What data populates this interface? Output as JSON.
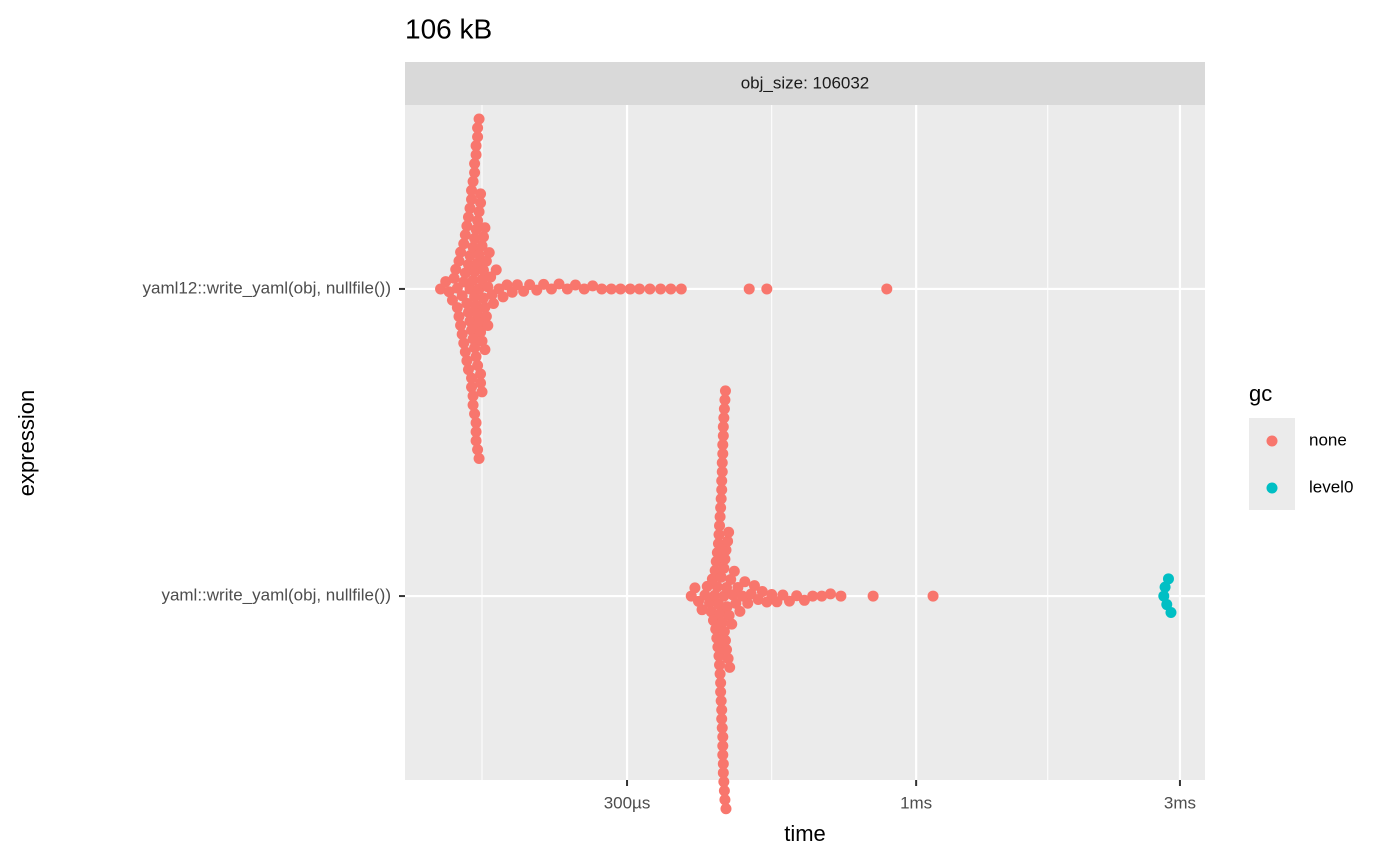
{
  "chart_data": {
    "type": "beeswarm",
    "title": "106 kB",
    "strip": "obj_size: 106032",
    "x_label": "time",
    "y_label": "expression",
    "categories": [
      "yaml12::write_yaml(obj, nullfile())",
      "yaml::write_yaml(obj, nullfile())"
    ],
    "log_x": true,
    "xlim": [
      119,
      3330
    ],
    "xticks": [
      {
        "value": 300,
        "label": "300µs"
      },
      {
        "value": 1000,
        "label": "1ms"
      },
      {
        "value": 3000,
        "label": "3ms"
      }
    ],
    "xminorticks": [
      164,
      548,
      1730
    ],
    "grid": true,
    "legend_title": "gc",
    "legend_position": "right",
    "series": [
      {
        "name": "none",
        "color": "#f8766d",
        "values": [
          [
            138,
            141,
            143,
            145,
            146,
            147,
            148,
            148,
            149,
            149,
            150,
            150,
            151,
            151,
            152,
            152,
            152,
            153,
            153,
            153,
            154,
            154,
            154,
            155,
            155,
            155,
            155,
            156,
            156,
            156,
            156,
            157,
            157,
            157,
            157,
            157,
            158,
            158,
            158,
            158,
            158,
            158,
            159,
            159,
            159,
            159,
            159,
            159,
            159,
            160,
            160,
            160,
            160,
            160,
            160,
            160,
            160,
            161,
            161,
            161,
            161,
            161,
            161,
            161,
            162,
            162,
            162,
            162,
            162,
            162,
            163,
            163,
            163,
            163,
            163,
            164,
            164,
            164,
            164,
            165,
            165,
            165,
            166,
            166,
            166,
            167,
            167,
            168,
            168,
            169,
            170,
            171,
            172,
            174,
            176,
            179,
            182,
            186,
            190,
            195,
            200,
            206,
            212,
            219,
            226,
            234,
            242,
            251,
            260,
            270,
            281,
            292,
            304,
            316,
            330,
            345,
            360,
            376,
            499,
            537,
            885
          ],
          [
            392,
            398,
            404,
            410,
            415,
            419,
            423,
            426,
            428,
            430,
            432,
            433,
            434,
            435,
            436,
            437,
            437,
            438,
            439,
            439,
            440,
            440,
            441,
            441,
            442,
            442,
            442,
            443,
            443,
            443,
            444,
            444,
            444,
            445,
            445,
            445,
            445,
            446,
            446,
            446,
            446,
            447,
            447,
            447,
            447,
            447,
            448,
            448,
            448,
            448,
            449,
            449,
            449,
            449,
            450,
            450,
            450,
            451,
            451,
            451,
            452,
            452,
            453,
            453,
            454,
            454,
            455,
            456,
            457,
            458,
            459,
            460,
            462,
            464,
            466,
            469,
            472,
            476,
            480,
            485,
            490,
            496,
            503,
            510,
            518,
            527,
            537,
            548,
            560,
            574,
            590,
            608,
            628,
            650,
            675,
            700,
            731,
            836,
            1073
          ]
        ]
      },
      {
        "name": "level0",
        "color": "#00bfc4",
        "values": [
          [],
          [
            2805,
            2820,
            2840,
            2860,
            2890
          ]
        ]
      }
    ]
  }
}
